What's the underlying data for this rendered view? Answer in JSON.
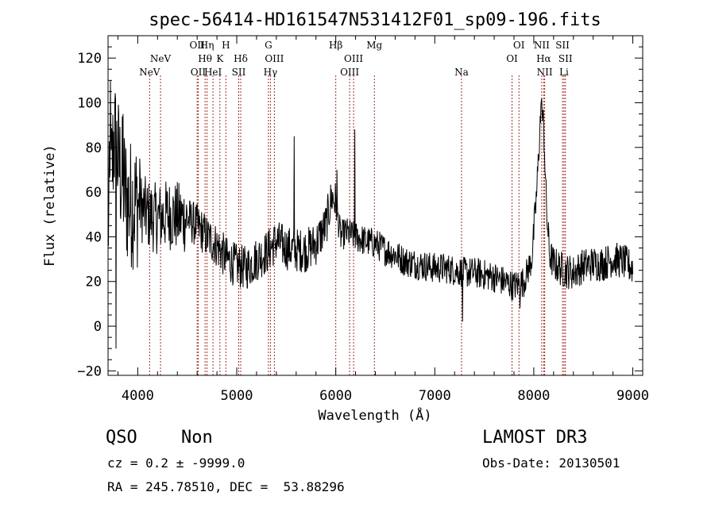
{
  "chart_data": {
    "type": "line",
    "title": "spec-56414-HD161547N531412F01_sp09-196.fits",
    "xlabel": "Wavelength (Å)",
    "ylabel": "Flux (relative)",
    "xlim": [
      3700,
      9100
    ],
    "ylim": [
      -22,
      130
    ],
    "xticks": [
      4000,
      5000,
      6000,
      7000,
      8000,
      9000
    ],
    "yticks": [
      -20,
      0,
      20,
      40,
      60,
      80,
      100,
      120
    ],
    "ytick_labels": [
      "−20",
      "0",
      "20",
      "40",
      "60",
      "80",
      "100",
      "120"
    ],
    "line_color": "#a0302a",
    "spectrum_color": "#000000",
    "spectral_lines": [
      {
        "label": "NeV",
        "wavelength": 4120,
        "row": 3
      },
      {
        "label": "NeV",
        "wavelength": 4230,
        "row": 2
      },
      {
        "label": "OII",
        "wavelength": 4600,
        "row": 1
      },
      {
        "label": "OII",
        "wavelength": 4610,
        "row": 3
      },
      {
        "label": "Hη",
        "wavelength": 4700,
        "row": 1
      },
      {
        "label": "Hθ",
        "wavelength": 4680,
        "row": 2
      },
      {
        "label": "HeI",
        "wavelength": 4760,
        "row": 3
      },
      {
        "label": "H",
        "wavelength": 4890,
        "row": 1
      },
      {
        "label": "K",
        "wavelength": 4830,
        "row": 2
      },
      {
        "label": "Hδ",
        "wavelength": 5040,
        "row": 2
      },
      {
        "label": "SII",
        "wavelength": 5020,
        "row": 3
      },
      {
        "label": "G",
        "wavelength": 5320,
        "row": 1
      },
      {
        "label": "OIII",
        "wavelength": 5380,
        "row": 2
      },
      {
        "label": "Hγ",
        "wavelength": 5340,
        "row": 3
      },
      {
        "label": "Hβ",
        "wavelength": 6000,
        "row": 1
      },
      {
        "label": "OIII",
        "wavelength": 6180,
        "row": 2
      },
      {
        "label": "OIII",
        "wavelength": 6140,
        "row": 3
      },
      {
        "label": "Mg",
        "wavelength": 6390,
        "row": 1
      },
      {
        "label": "Na",
        "wavelength": 7270,
        "row": 3
      },
      {
        "label": "OI",
        "wavelength": 7850,
        "row": 1
      },
      {
        "label": "OI",
        "wavelength": 7780,
        "row": 2
      },
      {
        "label": "NII",
        "wavelength": 8080,
        "row": 1
      },
      {
        "label": "Hα",
        "wavelength": 8100,
        "row": 2
      },
      {
        "label": "NII",
        "wavelength": 8110,
        "row": 3
      },
      {
        "label": "SII",
        "wavelength": 8290,
        "row": 1
      },
      {
        "label": "SII",
        "wavelength": 8320,
        "row": 2
      },
      {
        "label": "Li",
        "wavelength": 8305,
        "row": 3
      }
    ],
    "spectrum_anchors": [
      [
        3700,
        45
      ],
      [
        3760,
        85
      ],
      [
        3820,
        70
      ],
      [
        3900,
        55
      ],
      [
        4000,
        55
      ],
      [
        4100,
        50
      ],
      [
        4200,
        48
      ],
      [
        4300,
        50
      ],
      [
        4400,
        49
      ],
      [
        4500,
        48
      ],
      [
        4600,
        45
      ],
      [
        4700,
        40
      ],
      [
        4800,
        36
      ],
      [
        4900,
        30
      ],
      [
        5000,
        27
      ],
      [
        5100,
        26
      ],
      [
        5200,
        30
      ],
      [
        5300,
        33
      ],
      [
        5400,
        38
      ],
      [
        5500,
        35
      ],
      [
        5600,
        34
      ],
      [
        5700,
        34
      ],
      [
        5800,
        37
      ],
      [
        5900,
        45
      ],
      [
        5960,
        58
      ],
      [
        6000,
        55
      ],
      [
        6050,
        40
      ],
      [
        6100,
        42
      ],
      [
        6200,
        40
      ],
      [
        6300,
        38
      ],
      [
        6400,
        37
      ],
      [
        6500,
        34
      ],
      [
        6600,
        32
      ],
      [
        6700,
        29
      ],
      [
        6800,
        28
      ],
      [
        6900,
        27
      ],
      [
        7000,
        26
      ],
      [
        7100,
        26
      ],
      [
        7200,
        25
      ],
      [
        7300,
        24
      ],
      [
        7400,
        24
      ],
      [
        7500,
        23
      ],
      [
        7600,
        22
      ],
      [
        7700,
        20
      ],
      [
        7800,
        18
      ],
      [
        7900,
        20
      ],
      [
        7980,
        30
      ],
      [
        8030,
        60
      ],
      [
        8070,
        96
      ],
      [
        8100,
        90
      ],
      [
        8130,
        50
      ],
      [
        8160,
        32
      ],
      [
        8200,
        28
      ],
      [
        8300,
        25
      ],
      [
        8400,
        24
      ],
      [
        8500,
        27
      ],
      [
        8600,
        28
      ],
      [
        8700,
        28
      ],
      [
        8800,
        30
      ],
      [
        8900,
        29
      ],
      [
        9000,
        26
      ]
    ],
    "spectrum_spikes": [
      [
        3725,
        110
      ],
      [
        3780,
        -10
      ],
      [
        3850,
        95
      ],
      [
        4020,
        75
      ],
      [
        5580,
        85
      ],
      [
        6190,
        88
      ],
      [
        6010,
        70
      ],
      [
        7280,
        2
      ],
      [
        7860,
        8
      ],
      [
        8080,
        102
      ]
    ]
  },
  "info": {
    "class_label": "QSO",
    "subclass_label": "Non",
    "survey": "LAMOST DR3",
    "cz_line": "cz = 0.2 ± -9999.0",
    "obs_date_line": "Obs-Date: 20130501",
    "radec_line": "RA = 245.78510, DEC =  53.88296"
  }
}
